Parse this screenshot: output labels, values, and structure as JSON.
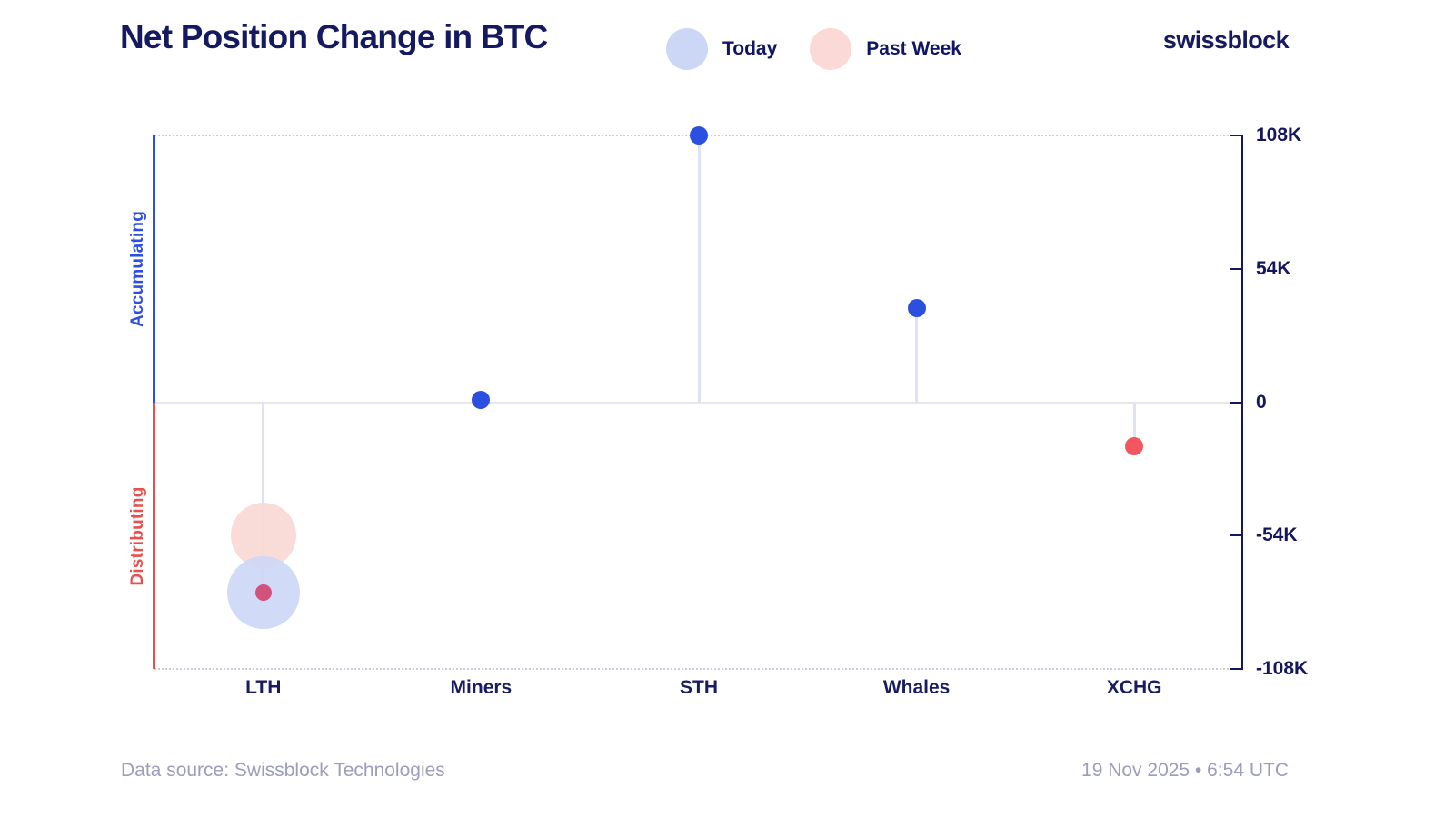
{
  "header": {
    "title": "Net Position Change in BTC",
    "logo": "swissblock",
    "legend": [
      {
        "label": "Today",
        "color": "#ccd7f6"
      },
      {
        "label": "Past Week",
        "color": "#fbd9d6"
      }
    ]
  },
  "chart_data": {
    "type": "scatter",
    "subtype": "lollipop-bubble",
    "title": "Net Position Change in BTC",
    "unit": "BTC",
    "categories": [
      "LTH",
      "Miners",
      "STH",
      "Whales",
      "XCHG"
    ],
    "yaxis": {
      "min": -108000,
      "max": 108000,
      "ticks": [
        {
          "label": "108K",
          "value": 108000
        },
        {
          "label": "54K",
          "value": 54000
        },
        {
          "label": "0",
          "value": 0
        },
        {
          "label": "-54K",
          "value": -54000
        },
        {
          "label": "-108K",
          "value": -108000
        }
      ]
    },
    "side_labels": {
      "positive": "Accumulating",
      "negative": "Distributing"
    },
    "colors": {
      "accumulating": "#2d4fe0",
      "distributing": "#f2565e"
    },
    "series": [
      {
        "name": "Past Week",
        "style": "bubble",
        "color": "#f9d8d5",
        "opacity": 0.92,
        "points": [
          {
            "category": "LTH",
            "value": -54000,
            "radius": 36
          }
        ]
      },
      {
        "name": "Today",
        "style": "bubble",
        "color": "#ccd7f6",
        "opacity": 0.9,
        "points": [
          {
            "category": "LTH",
            "value": -77000,
            "radius": 40
          }
        ]
      },
      {
        "name": "Today",
        "style": "dot",
        "values": [
          -77000,
          1000,
          108000,
          38000,
          -18000
        ],
        "dot_colors": [
          "#d1527c",
          "#2d4fe0",
          "#2d4fe0",
          "#2d4fe0",
          "#f2565e"
        ],
        "dot_radii": [
          9,
          10,
          10,
          10,
          10
        ]
      }
    ],
    "grid": "dotted lines at max and min only, solid line at zero",
    "legend_position": "top-center"
  },
  "footer": {
    "source": "Data source: Swissblock Technologies",
    "timestamp": "19 Nov 2025 • 6:54 UTC"
  }
}
